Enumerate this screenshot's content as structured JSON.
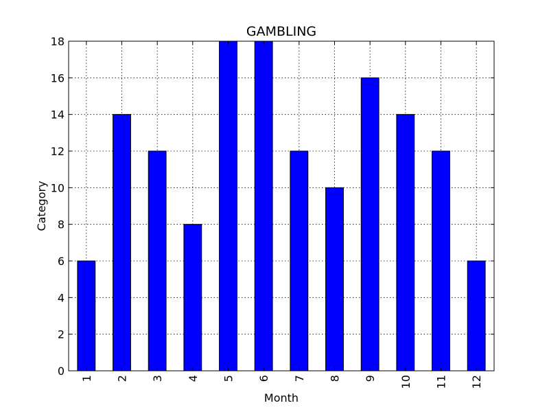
{
  "chart_data": {
    "type": "bar",
    "title": "GAMBLING",
    "xlabel": "Month",
    "ylabel": "Category",
    "categories": [
      "1",
      "2",
      "3",
      "4",
      "5",
      "6",
      "7",
      "8",
      "9",
      "10",
      "11",
      "12"
    ],
    "values": [
      6,
      14,
      12,
      8,
      18,
      18,
      12,
      10,
      16,
      14,
      12,
      6
    ],
    "ylim": [
      0,
      18
    ],
    "yticks": [
      0,
      2,
      4,
      6,
      8,
      10,
      12,
      14,
      16,
      18
    ],
    "grid": true,
    "bar_color": "#0000ff",
    "x_tick_rotation": "vertical"
  }
}
